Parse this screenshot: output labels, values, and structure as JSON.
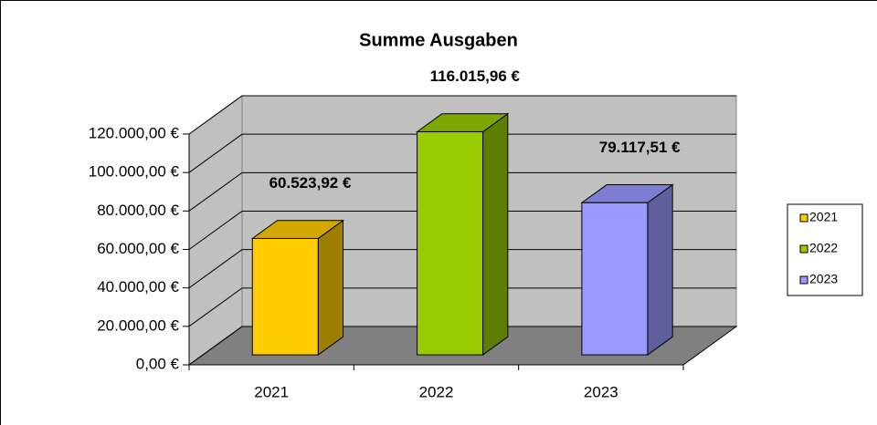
{
  "chart_data": {
    "type": "bar3d",
    "title": "Summe Ausgaben",
    "categories": [
      "2021",
      "2022",
      "2023"
    ],
    "values": [
      60523.92,
      116015.96,
      79117.51
    ],
    "value_labels": [
      "60.523,92 €",
      "116.015,96 €",
      "79.117,51 €"
    ],
    "colors": [
      "#ffcc00",
      "#99cc00",
      "#9999ff"
    ],
    "ylim": [
      0,
      120000
    ],
    "yticks": [
      {
        "value": 0,
        "label": "0,00 €"
      },
      {
        "value": 20000,
        "label": "20.000,00 €"
      },
      {
        "value": 40000,
        "label": "40.000,00 €"
      },
      {
        "value": 60000,
        "label": "60.000,00 €"
      },
      {
        "value": 80000,
        "label": "80.000,00 €"
      },
      {
        "value": 100000,
        "label": "100.000,00 €"
      },
      {
        "value": 120000,
        "label": "120.000,00 €"
      }
    ],
    "grid": true,
    "legend": "right"
  }
}
